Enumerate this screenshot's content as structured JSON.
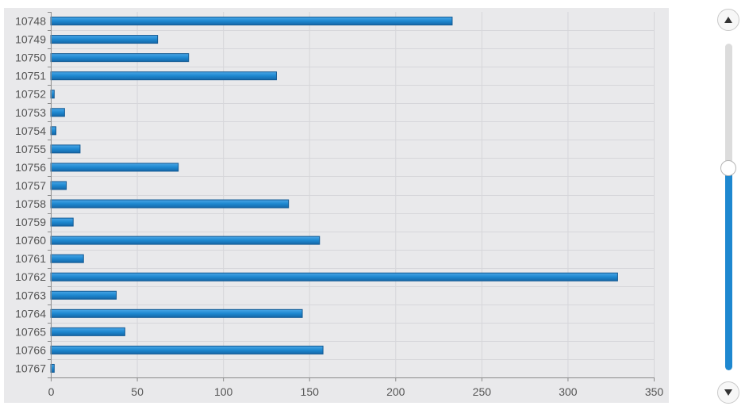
{
  "chart_data": {
    "type": "bar",
    "orientation": "horizontal",
    "categories": [
      "10748",
      "10749",
      "10750",
      "10751",
      "10752",
      "10753",
      "10754",
      "10755",
      "10756",
      "10757",
      "10758",
      "10759",
      "10760",
      "10761",
      "10762",
      "10763",
      "10764",
      "10765",
      "10766",
      "10767"
    ],
    "values": [
      233,
      62,
      80,
      131,
      2,
      8,
      3,
      17,
      74,
      9,
      138,
      13,
      156,
      19,
      329,
      38,
      146,
      43,
      158,
      2
    ],
    "title": "",
    "xlabel": "",
    "ylabel": "",
    "xlim": [
      0,
      350
    ],
    "xticks": [
      0,
      50,
      100,
      150,
      200,
      250,
      300,
      350
    ],
    "grid": true,
    "legend": "none",
    "bar_color": "#1e88d0"
  },
  "slider": {
    "orientation": "vertical",
    "level": 0.62,
    "up_icon": "triangle-up-icon",
    "down_icon": "triangle-down-icon",
    "accent_color": "#1e88d0"
  }
}
